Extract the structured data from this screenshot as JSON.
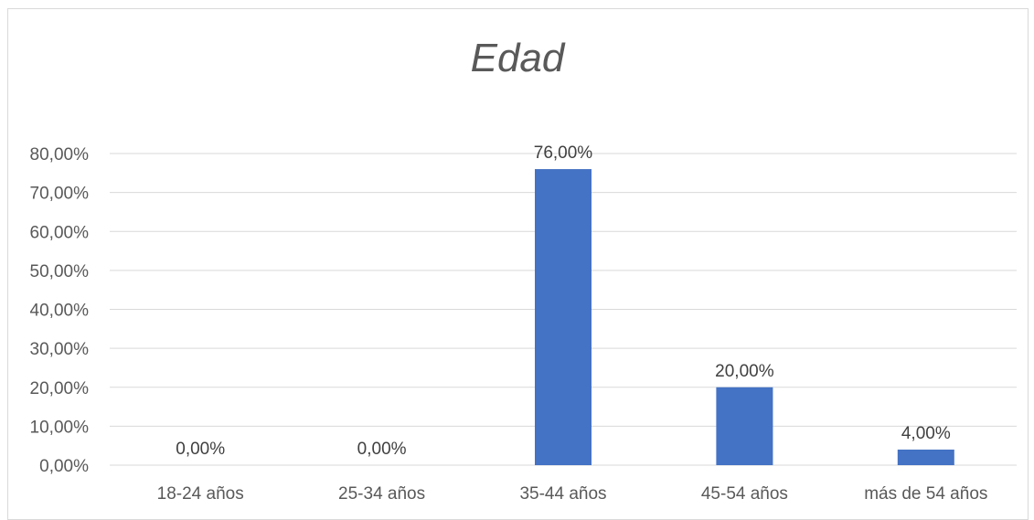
{
  "chart_data": {
    "type": "bar",
    "title": "Edad",
    "xlabel": "",
    "ylabel": "",
    "categories": [
      "18-24 años",
      "25-34 años",
      "35-44 años",
      "45-54 años",
      "más de 54  años"
    ],
    "values": [
      0.0,
      0.0,
      76.0,
      20.0,
      4.0
    ],
    "data_labels": [
      "0,00%",
      "0,00%",
      "76,00%",
      "20,00%",
      "4,00%"
    ],
    "yticks": [
      "0,00%",
      "10,00%",
      "20,00%",
      "30,00%",
      "40,00%",
      "50,00%",
      "60,00%",
      "70,00%",
      "80,00%"
    ],
    "ylim": [
      0,
      80
    ],
    "ystep": 10,
    "grid": true,
    "legend": "none",
    "bar_color": "#4472c4"
  }
}
